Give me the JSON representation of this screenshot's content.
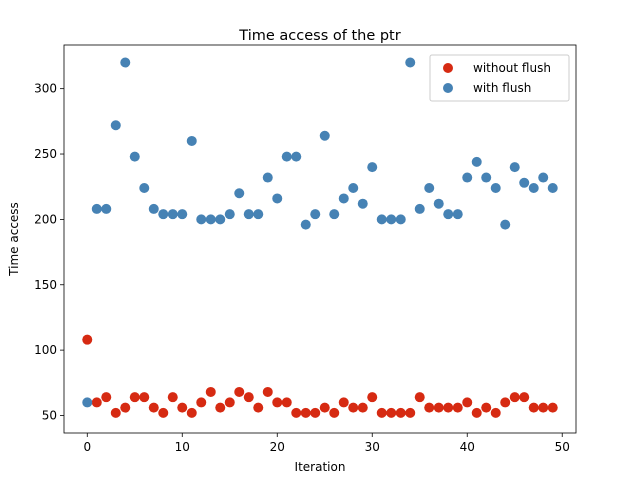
{
  "chart_data": {
    "type": "scatter",
    "title": "Time access of the ptr",
    "xlabel": "Iteration",
    "ylabel": "Time access",
    "xlim": [
      -2.45,
      51.45
    ],
    "ylim": [
      36.6,
      333.4
    ],
    "xticks": [
      0,
      10,
      20,
      30,
      40,
      50
    ],
    "yticks": [
      50,
      100,
      150,
      200,
      250,
      300
    ],
    "grid": false,
    "legend_position": "top-right",
    "x": [
      0,
      1,
      2,
      3,
      4,
      5,
      6,
      7,
      8,
      9,
      10,
      11,
      12,
      13,
      14,
      15,
      16,
      17,
      18,
      19,
      20,
      21,
      22,
      23,
      24,
      25,
      26,
      27,
      28,
      29,
      30,
      31,
      32,
      33,
      34,
      35,
      36,
      37,
      38,
      39,
      40,
      41,
      42,
      43,
      44,
      45,
      46,
      47,
      48,
      49
    ],
    "series": [
      {
        "name": "without flush",
        "color": "#d62a12",
        "values": [
          108,
          60,
          64,
          52,
          56,
          64,
          64,
          56,
          52,
          64,
          56,
          52,
          60,
          68,
          56,
          60,
          68,
          64,
          56,
          68,
          60,
          60,
          52,
          52,
          52,
          56,
          52,
          60,
          56,
          56,
          64,
          52,
          52,
          52,
          52,
          64,
          56,
          56,
          56,
          56,
          60,
          52,
          56,
          52,
          60,
          64,
          64,
          56,
          56,
          56
        ]
      },
      {
        "name": "with flush",
        "color": "#4682b4",
        "values": [
          60,
          208,
          208,
          272,
          320,
          248,
          224,
          208,
          204,
          204,
          204,
          260,
          200,
          200,
          200,
          204,
          220,
          204,
          204,
          232,
          216,
          248,
          248,
          196,
          204,
          264,
          204,
          216,
          224,
          212,
          240,
          200,
          200,
          200,
          320,
          208,
          224,
          212,
          204,
          204,
          232,
          244,
          232,
          224,
          196,
          240,
          228,
          224,
          232,
          224
        ]
      }
    ]
  }
}
